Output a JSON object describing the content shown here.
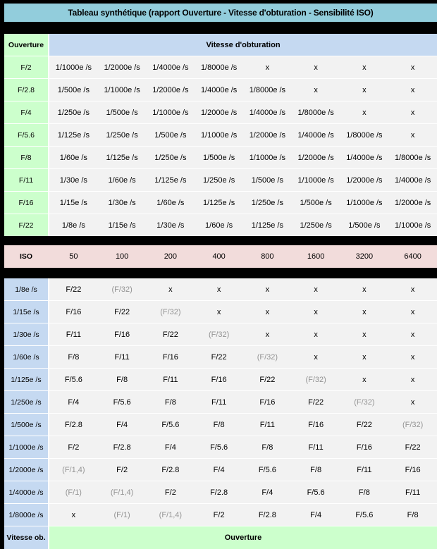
{
  "title": "Tableau synthétique (rapport Ouverture - Vitesse d'obturation - Sensibilité ISO)",
  "colors": {
    "page_background": "#000000",
    "title_bar": "#92CDDC",
    "header_blue": "#C5D9F1",
    "green": "#CCFFCC",
    "iso_pink": "#F2DCDB",
    "cell_background": "#F2F2F2",
    "text": "#000000",
    "muted_text": "#949494"
  },
  "aperture_table": {
    "corner_label": "Ouverture",
    "header": "Vitesse d'obturation",
    "rows": [
      {
        "label": "F/2",
        "cells": [
          "1/1000e /s",
          "1/2000e /s",
          "1/4000e /s",
          "1/8000e /s",
          "x",
          "x",
          "x",
          "x"
        ]
      },
      {
        "label": "F/2.8",
        "cells": [
          "1/500e /s",
          "1/1000e /s",
          "1/2000e /s",
          "1/4000e /s",
          "1/8000e /s",
          "x",
          "x",
          "x"
        ]
      },
      {
        "label": "F/4",
        "cells": [
          "1/250e /s",
          "1/500e /s",
          "1/1000e /s",
          "1/2000e /s",
          "1/4000e /s",
          "1/8000e /s",
          "x",
          "x"
        ]
      },
      {
        "label": "F/5.6",
        "cells": [
          "1/125e /s",
          "1/250e /s",
          "1/500e /s",
          "1/1000e /s",
          "1/2000e /s",
          "1/4000e /s",
          "1/8000e /s",
          "x"
        ]
      },
      {
        "label": "F/8",
        "cells": [
          "1/60e /s",
          "1/125e /s",
          "1/250e /s",
          "1/500e /s",
          "1/1000e /s",
          "1/2000e /s",
          "1/4000e /s",
          "1/8000e /s"
        ]
      },
      {
        "label": "F/11",
        "cells": [
          "1/30e /s",
          "1/60e /s",
          "1/125e /s",
          "1/250e /s",
          "1/500e /s",
          "1/1000e /s",
          "1/2000e /s",
          "1/4000e /s"
        ]
      },
      {
        "label": "F/16",
        "cells": [
          "1/15e /s",
          "1/30e /s",
          "1/60e /s",
          "1/125e /s",
          "1/250e /s",
          "1/500e /s",
          "1/1000e /s",
          "1/2000e /s"
        ]
      },
      {
        "label": "F/22",
        "cells": [
          "1/8e /s",
          "1/15e /s",
          "1/30e /s",
          "1/60e /s",
          "1/125e /s",
          "1/250e /s",
          "1/500e /s",
          "1/1000e /s"
        ]
      }
    ]
  },
  "iso_row": {
    "label": "ISO",
    "values": [
      "50",
      "100",
      "200",
      "400",
      "800",
      "1600",
      "3200",
      "6400"
    ]
  },
  "shutter_table": {
    "rows": [
      {
        "label": "1/8e /s",
        "cells": [
          "F/22",
          "(F/32)",
          "x",
          "x",
          "x",
          "x",
          "x",
          "x"
        ]
      },
      {
        "label": "1/15e /s",
        "cells": [
          "F/16",
          "F/22",
          "(F/32)",
          "x",
          "x",
          "x",
          "x",
          "x"
        ]
      },
      {
        "label": "1/30e /s",
        "cells": [
          "F/11",
          "F/16",
          "F/22",
          "(F/32)",
          "x",
          "x",
          "x",
          "x"
        ]
      },
      {
        "label": "1/60e /s",
        "cells": [
          "F/8",
          "F/11",
          "F/16",
          "F/22",
          "(F/32)",
          "x",
          "x",
          "x"
        ]
      },
      {
        "label": "1/125e /s",
        "cells": [
          "F/5.6",
          "F/8",
          "F/11",
          "F/16",
          "F/22",
          "(F/32)",
          "x",
          "x"
        ]
      },
      {
        "label": "1/250e /s",
        "cells": [
          "F/4",
          "F/5.6",
          "F/8",
          "F/11",
          "F/16",
          "F/22",
          "(F/32)",
          "x"
        ]
      },
      {
        "label": "1/500e /s",
        "cells": [
          "F/2.8",
          "F/4",
          "F/5.6",
          "F/8",
          "F/11",
          "F/16",
          "F/22",
          "(F/32)"
        ]
      },
      {
        "label": "1/1000e /s",
        "cells": [
          "F/2",
          "F/2.8",
          "F/4",
          "F/5.6",
          "F/8",
          "F/11",
          "F/16",
          "F/22"
        ]
      },
      {
        "label": "1/2000e /s",
        "cells": [
          "(F/1,4)",
          "F/2",
          "F/2.8",
          "F/4",
          "F/5.6",
          "F/8",
          "F/11",
          "F/16"
        ]
      },
      {
        "label": "1/4000e /s",
        "cells": [
          "(F/1)",
          "(F/1,4)",
          "F/2",
          "F/2.8",
          "F/4",
          "F/5.6",
          "F/8",
          "F/11"
        ]
      },
      {
        "label": "1/8000e /s",
        "cells": [
          "x",
          "(F/1)",
          "(F/1,4)",
          "F/2",
          "F/2.8",
          "F/4",
          "F/5.6",
          "F/8"
        ]
      }
    ],
    "footer_label": "Vitesse ob.",
    "footer_value": "Ouverture"
  }
}
